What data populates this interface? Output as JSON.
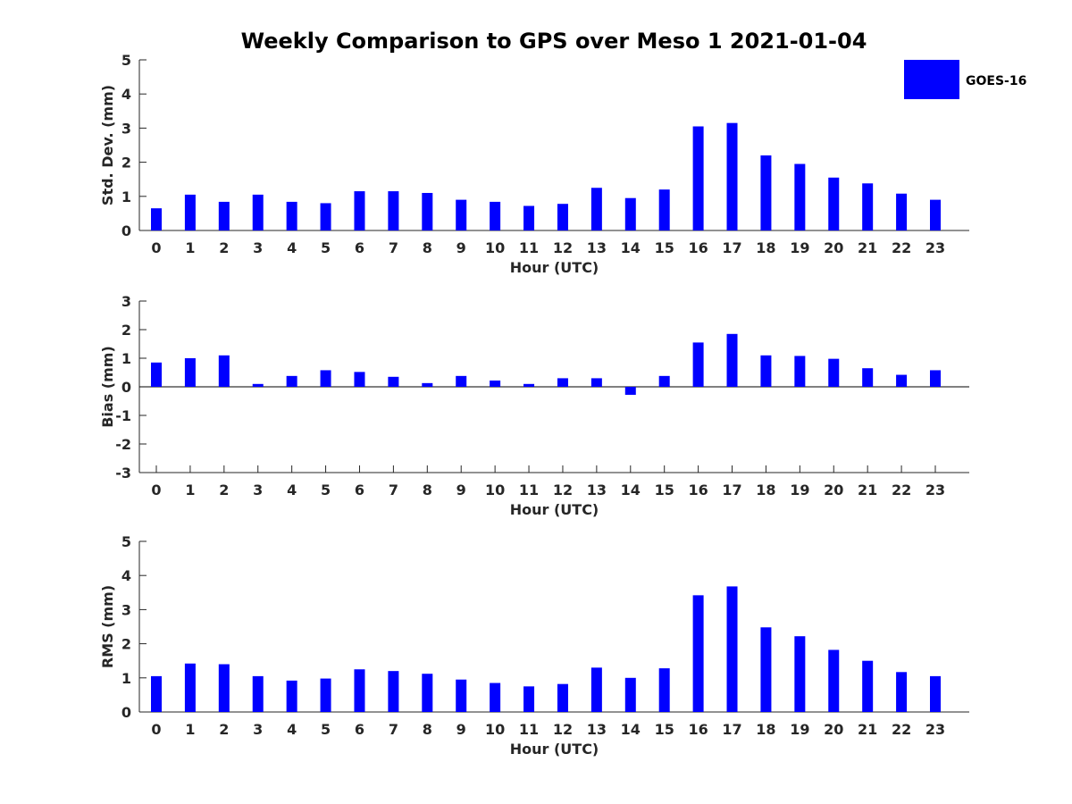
{
  "colors": {
    "bar": "#0000ff",
    "axis": "#262626",
    "title": "#000000",
    "background": "#ffffff"
  },
  "legend": {
    "label": "GOES-16",
    "placement": "top-right"
  },
  "chart_data": {
    "title": "Weekly Comparison to GPS over Meso 1 2021-01-04",
    "panels": [
      {
        "type": "bar",
        "ylabel": "Std. Dev. (mm)",
        "xlabel": "Hour (UTC)",
        "ylim": [
          0,
          5
        ],
        "yticks": [
          "0",
          "1",
          "2",
          "3",
          "4",
          "5"
        ],
        "categories": [
          "0",
          "1",
          "2",
          "3",
          "4",
          "5",
          "6",
          "7",
          "8",
          "9",
          "10",
          "11",
          "12",
          "13",
          "14",
          "15",
          "16",
          "17",
          "18",
          "19",
          "20",
          "21",
          "22",
          "23"
        ],
        "series": [
          {
            "name": "GOES-16",
            "values": [
              0.65,
              1.05,
              0.84,
              1.05,
              0.84,
              0.8,
              1.15,
              1.15,
              1.1,
              0.9,
              0.84,
              0.72,
              0.78,
              1.25,
              0.95,
              1.2,
              3.05,
              3.15,
              2.2,
              1.95,
              1.55,
              1.38,
              1.08,
              0.9
            ]
          }
        ]
      },
      {
        "type": "bar",
        "ylabel": "Bias (mm)",
        "xlabel": "Hour (UTC)",
        "ylim": [
          -3,
          3
        ],
        "yticks": [
          "-3",
          "-2",
          "-1",
          "0",
          "1",
          "2",
          "3"
        ],
        "baseline_line": true,
        "categories": [
          "0",
          "1",
          "2",
          "3",
          "4",
          "5",
          "6",
          "7",
          "8",
          "9",
          "10",
          "11",
          "12",
          "13",
          "14",
          "15",
          "16",
          "17",
          "18",
          "19",
          "20",
          "21",
          "22",
          "23"
        ],
        "series": [
          {
            "name": "GOES-16",
            "values": [
              0.85,
              1.0,
              1.1,
              0.1,
              0.38,
              0.58,
              0.52,
              0.35,
              0.13,
              0.38,
              0.22,
              0.1,
              0.3,
              0.3,
              -0.28,
              0.38,
              1.55,
              1.85,
              1.1,
              1.08,
              0.98,
              0.65,
              0.42,
              0.58
            ]
          }
        ]
      },
      {
        "type": "bar",
        "ylabel": "RMS (mm)",
        "xlabel": "Hour (UTC)",
        "ylim": [
          0,
          5
        ],
        "yticks": [
          "0",
          "1",
          "2",
          "3",
          "4",
          "5"
        ],
        "categories": [
          "0",
          "1",
          "2",
          "3",
          "4",
          "5",
          "6",
          "7",
          "8",
          "9",
          "10",
          "11",
          "12",
          "13",
          "14",
          "15",
          "16",
          "17",
          "18",
          "19",
          "20",
          "21",
          "22",
          "23"
        ],
        "series": [
          {
            "name": "GOES-16",
            "values": [
              1.05,
              1.42,
              1.4,
              1.05,
              0.92,
              0.98,
              1.25,
              1.2,
              1.12,
              0.95,
              0.85,
              0.75,
              0.82,
              1.3,
              1.0,
              1.28,
              3.42,
              3.68,
              2.48,
              2.22,
              1.82,
              1.5,
              1.17,
              1.05
            ]
          }
        ]
      }
    ]
  }
}
